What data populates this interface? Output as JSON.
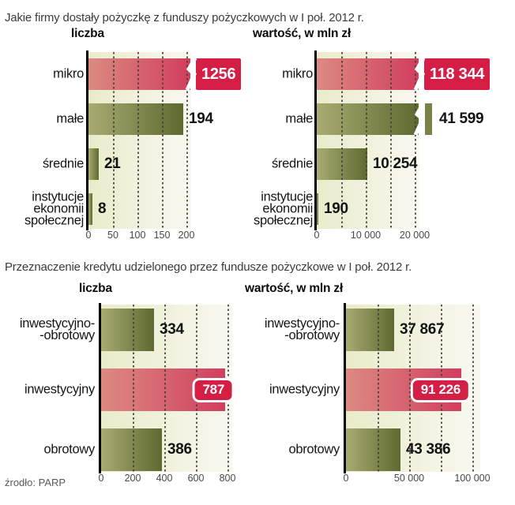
{
  "page": {
    "section1_title": "Jakie firmy dostały pożyczkę z funduszy pożyczkowych w I poł. 2012 r.",
    "section2_title": "Przeznaczenie kredytu udzielonego przez fundusze pożyczkowe w I poł. 2012 r.",
    "source": "źrodło: PARP"
  },
  "colors": {
    "bar_red_light": "#dc8a81",
    "bar_red_dark": "#d13e5e",
    "red_solid": "#d51e46",
    "bar_olive_light": "#a9ab72",
    "bar_olive_dark": "#5e6930",
    "stub_olive": "#7b8147",
    "plot_bg_left": "#e9ecca",
    "plot_bg_right": "#f8f8f0",
    "gridline": "#404034",
    "axis": "#000000"
  },
  "chart_data": [
    {
      "id": "firms-count",
      "type": "bar",
      "orientation": "horizontal",
      "title": "liczba",
      "categories": [
        "mikro",
        "małe",
        "średnie",
        "instytucje\nekonomii\nspołecznej"
      ],
      "values": [
        1256,
        194,
        21,
        8
      ],
      "value_labels": [
        "1256",
        "194",
        "21",
        "8"
      ],
      "row_colors": [
        "red",
        "olive",
        "olive",
        "olive"
      ],
      "row_styles": [
        "overflow-box",
        "plain",
        "plain",
        "plain"
      ],
      "xlim": [
        0,
        210
      ],
      "gridlines": [
        50,
        100,
        150,
        200
      ],
      "ticks": [
        {
          "v": 0,
          "label": "0"
        },
        {
          "v": 50,
          "label": "50"
        },
        {
          "v": 100,
          "label": "100"
        },
        {
          "v": 150,
          "label": "150"
        },
        {
          "v": 200,
          "label": "200"
        }
      ]
    },
    {
      "id": "firms-value",
      "type": "bar",
      "orientation": "horizontal",
      "title": "wartość, w mln zł",
      "categories": [
        "mikro",
        "małe",
        "średnie",
        "instytucje\nekonomii\nspołecznej"
      ],
      "values": [
        118344,
        41599,
        10254,
        190
      ],
      "value_labels": [
        "118 344",
        "41 599",
        "10 254",
        "190"
      ],
      "row_colors": [
        "red",
        "olive",
        "olive",
        "olive"
      ],
      "row_styles": [
        "overflow-box",
        "overflow-stub",
        "plain",
        "plain"
      ],
      "xlim": [
        0,
        21000
      ],
      "gridlines": [
        5000,
        10000,
        15000,
        20000
      ],
      "ticks": [
        {
          "v": 0,
          "label": "0"
        },
        {
          "v": 10000,
          "label": "10 000"
        },
        {
          "v": 20000,
          "label": "20 000"
        }
      ]
    },
    {
      "id": "purpose-count",
      "type": "bar",
      "orientation": "horizontal",
      "title": "liczba",
      "categories": [
        "inwestycyjno-\n-obrotowy",
        "inwestycyjny",
        "obrotowy"
      ],
      "values": [
        334,
        787,
        386
      ],
      "value_labels": [
        "334",
        "787",
        "386"
      ],
      "row_colors": [
        "olive",
        "red",
        "olive"
      ],
      "row_styles": [
        "plain",
        "badge",
        "plain"
      ],
      "xlim": [
        0,
        830
      ],
      "gridlines": [
        200,
        400,
        600,
        800
      ],
      "ticks": [
        {
          "v": 0,
          "label": "0"
        },
        {
          "v": 200,
          "label": "200"
        },
        {
          "v": 400,
          "label": "400"
        },
        {
          "v": 600,
          "label": "600"
        },
        {
          "v": 800,
          "label": "800"
        }
      ]
    },
    {
      "id": "purpose-value",
      "type": "bar",
      "orientation": "horizontal",
      "title": "wartość, w mln zł",
      "categories": [
        "inwestycyjno-\n-obrotowy",
        "inwestycyjny",
        "obrotowy"
      ],
      "values": [
        37867,
        91226,
        43386
      ],
      "value_labels": [
        "37 867",
        "91 226",
        "43 386"
      ],
      "row_colors": [
        "olive",
        "red",
        "olive"
      ],
      "row_styles": [
        "plain",
        "badge",
        "plain"
      ],
      "xlim": [
        0,
        106000
      ],
      "gridlines": [
        25000,
        50000,
        75000,
        100000
      ],
      "ticks": [
        {
          "v": 0,
          "label": "0"
        },
        {
          "v": 50000,
          "label": "50 000"
        },
        {
          "v": 100000,
          "label": "100 000"
        }
      ]
    }
  ]
}
